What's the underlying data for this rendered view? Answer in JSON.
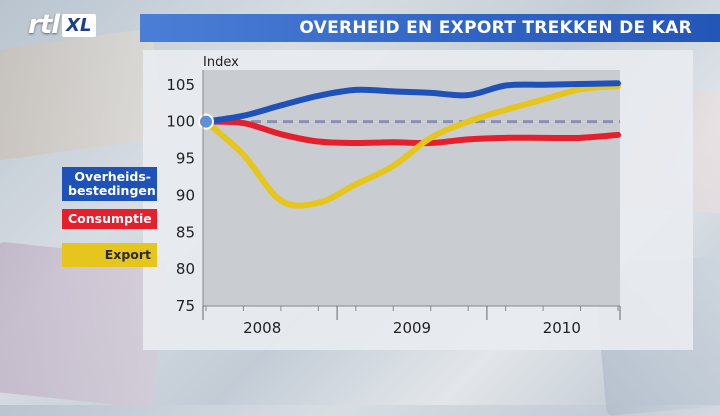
{
  "header": {
    "logo_primary": "rtl",
    "logo_secondary": "XL",
    "title": "OVERHEID EN EXPORT TREKKEN DE KAR"
  },
  "colors": {
    "title_bar": "#2f63c4",
    "government": "#1f52b9",
    "consumption": "#e5202c",
    "export": "#e6c51d",
    "reference_line": "#8a8fb5",
    "start_marker": "#5b8fe0"
  },
  "chart_data": {
    "type": "line",
    "ylabel": "Index",
    "ylim": [
      75,
      107
    ],
    "yticks": [
      75,
      80,
      85,
      90,
      95,
      100,
      105
    ],
    "x_tick_labels": [
      "2008",
      "2009",
      "2010"
    ],
    "x_quarters": [
      "2008-Q1",
      "2008-Q2",
      "2008-Q3",
      "2008-Q4",
      "2009-Q1",
      "2009-Q2",
      "2009-Q3",
      "2009-Q4",
      "2010-Q1",
      "2010-Q2",
      "2010-Q3",
      "2010-Q4"
    ],
    "reference_value": 100,
    "grid": false,
    "series": [
      {
        "name": "Overheids- bestedingen",
        "legend_lines": [
          "Overheids-",
          "bestedingen"
        ],
        "values": [
          100,
          100.8,
          102.2,
          103.5,
          104.3,
          104.1,
          103.9,
          103.6,
          104.9,
          105.0,
          105.1,
          105.2
        ]
      },
      {
        "name": "Consumptie",
        "legend_lines": [
          "Consumptie"
        ],
        "values": [
          100,
          99.8,
          98.3,
          97.3,
          97.1,
          97.2,
          97.1,
          97.6,
          97.8,
          97.8,
          97.8,
          98.2
        ]
      },
      {
        "name": "Export",
        "legend_lines": [
          "Export"
        ],
        "values": [
          100,
          95.5,
          89.3,
          89.0,
          91.5,
          94.0,
          97.8,
          100.0,
          101.6,
          103.0,
          104.4,
          104.8
        ]
      }
    ]
  }
}
